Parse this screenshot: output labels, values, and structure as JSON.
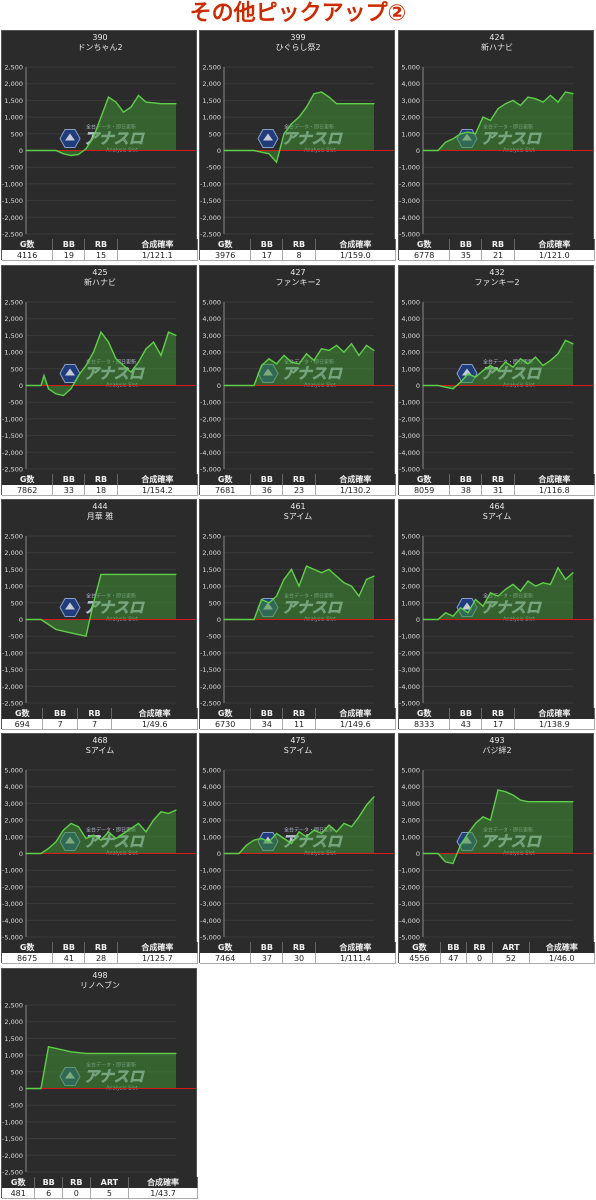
{
  "page_title": "その他ピックアップ②",
  "colors": {
    "panel_bg": "#2b2b2b",
    "line": "#5fcf4a",
    "fill": "#3f8f35",
    "zero_line": "#d41a1a",
    "grid": "#3a3a3a",
    "title": "#cc2a00"
  },
  "watermark": {
    "brand": "アナスロ",
    "sub": "Analysis Slot",
    "top": "全台データ・即日更新"
  },
  "chart_data": [
    {
      "type": "area",
      "id": "390",
      "name": "ドンちゃん2",
      "ylim": [
        -2500,
        2500
      ],
      "yticks": [
        "2,500",
        "2,000",
        "1,500",
        "1,000",
        "500",
        "0",
        "-500",
        "-1,000",
        "-1,500",
        "-2,000",
        "-2,500"
      ],
      "x": [
        0,
        10,
        20,
        25,
        30,
        35,
        40,
        45,
        50,
        55,
        60,
        65,
        70,
        75,
        80,
        90,
        100
      ],
      "y": [
        0,
        0,
        0,
        -100,
        -150,
        -120,
        50,
        400,
        1000,
        1600,
        1450,
        1150,
        1300,
        1650,
        1450,
        1400,
        1400
      ],
      "stats": {
        "headers": [
          "G数",
          "BB",
          "RB",
          "合成確率"
        ],
        "values": [
          "4116",
          "19",
          "15",
          "1/121.1"
        ]
      }
    },
    {
      "type": "area",
      "id": "399",
      "name": "ひぐらし祭2",
      "ylim": [
        -2500,
        2500
      ],
      "yticks": [
        "2,500",
        "2,000",
        "1,500",
        "1,000",
        "500",
        "0",
        "-500",
        "-1,000",
        "-1,500",
        "-2,000",
        "-2,500"
      ],
      "x": [
        0,
        10,
        20,
        25,
        30,
        35,
        40,
        45,
        50,
        55,
        60,
        65,
        70,
        75,
        80,
        90,
        100
      ],
      "y": [
        0,
        0,
        0,
        -50,
        -100,
        -350,
        500,
        800,
        1000,
        1300,
        1700,
        1750,
        1600,
        1400,
        1400,
        1400,
        1400
      ],
      "stats": {
        "headers": [
          "G数",
          "BB",
          "RB",
          "合成確率"
        ],
        "values": [
          "3976",
          "17",
          "8",
          "1/159.0"
        ]
      }
    },
    {
      "type": "area",
      "id": "424",
      "name": "新ハナビ",
      "ylim": [
        -5000,
        5000
      ],
      "yticks": [
        "5,000",
        "4,000",
        "3,000",
        "2,000",
        "1,000",
        "0",
        "-1,000",
        "-2,000",
        "-3,000",
        "-4,000",
        "-5,000"
      ],
      "x": [
        0,
        10,
        15,
        20,
        25,
        30,
        35,
        40,
        45,
        50,
        55,
        60,
        65,
        70,
        75,
        80,
        85,
        90,
        95,
        100
      ],
      "y": [
        0,
        0,
        500,
        700,
        1000,
        1100,
        1000,
        2000,
        1800,
        2500,
        2800,
        3000,
        2700,
        3200,
        3100,
        2900,
        3300,
        2900,
        3500,
        3400
      ],
      "stats": {
        "headers": [
          "G数",
          "BB",
          "RB",
          "合成確率"
        ],
        "values": [
          "6778",
          "35",
          "21",
          "1/121.0"
        ]
      }
    },
    {
      "type": "area",
      "id": "425",
      "name": "新ハナビ",
      "ylim": [
        -2500,
        2500
      ],
      "yticks": [
        "2,500",
        "2,000",
        "1,500",
        "1,000",
        "500",
        "0",
        "-500",
        "-1,000",
        "-1,500",
        "-2,000",
        "-2,500"
      ],
      "x": [
        0,
        10,
        12,
        15,
        20,
        25,
        30,
        35,
        40,
        45,
        50,
        55,
        60,
        65,
        70,
        75,
        80,
        85,
        90,
        95,
        100
      ],
      "y": [
        0,
        0,
        300,
        -100,
        -250,
        -300,
        -100,
        300,
        600,
        1000,
        1600,
        1300,
        800,
        600,
        400,
        700,
        1100,
        1300,
        900,
        1600,
        1500
      ],
      "stats": {
        "headers": [
          "G数",
          "BB",
          "RB",
          "合成確率"
        ],
        "values": [
          "7862",
          "33",
          "18",
          "1/154.2"
        ]
      }
    },
    {
      "type": "area",
      "id": "427",
      "name": "ファンキー2",
      "ylim": [
        -5000,
        5000
      ],
      "yticks": [
        "5,000",
        "4,000",
        "3,000",
        "2,000",
        "1,000",
        "0",
        "-1,000",
        "-2,000",
        "-3,000",
        "-4,000",
        "-5,000"
      ],
      "x": [
        0,
        10,
        20,
        25,
        30,
        35,
        40,
        45,
        50,
        55,
        60,
        65,
        70,
        75,
        80,
        85,
        90,
        95,
        100
      ],
      "y": [
        0,
        0,
        0,
        1200,
        1600,
        1300,
        1800,
        1400,
        1300,
        1900,
        1500,
        2200,
        2100,
        2400,
        2000,
        2500,
        1800,
        2400,
        2100
      ],
      "stats": {
        "headers": [
          "G数",
          "BB",
          "RB",
          "合成確率"
        ],
        "values": [
          "7681",
          "36",
          "23",
          "1/130.2"
        ]
      }
    },
    {
      "type": "area",
      "id": "432",
      "name": "ファンキー2",
      "ylim": [
        -5000,
        5000
      ],
      "yticks": [
        "5,000",
        "4,000",
        "3,000",
        "2,000",
        "1,000",
        "0",
        "-1,000",
        "-2,000",
        "-3,000",
        "-4,000",
        "-5,000"
      ],
      "x": [
        0,
        10,
        15,
        20,
        25,
        30,
        35,
        40,
        45,
        50,
        55,
        60,
        65,
        70,
        75,
        80,
        85,
        90,
        95,
        100
      ],
      "y": [
        0,
        0,
        -100,
        -200,
        200,
        700,
        500,
        900,
        1200,
        900,
        1400,
        1100,
        1600,
        1300,
        1700,
        1200,
        1500,
        1900,
        2700,
        2500
      ],
      "stats": {
        "headers": [
          "G数",
          "BB",
          "RB",
          "合成確率"
        ],
        "values": [
          "8059",
          "38",
          "31",
          "1/116.8"
        ]
      }
    },
    {
      "type": "area",
      "id": "444",
      "name": "月華 雅",
      "ylim": [
        -2500,
        2500
      ],
      "yticks": [
        "2,500",
        "2,000",
        "1,500",
        "1,000",
        "500",
        "0",
        "-500",
        "-1,000",
        "-1,500",
        "-2,000",
        "-2,500"
      ],
      "x": [
        0,
        10,
        20,
        30,
        40,
        45,
        50,
        55,
        60,
        70,
        80,
        90,
        100
      ],
      "y": [
        0,
        0,
        -300,
        -400,
        -500,
        500,
        1350,
        1350,
        1350,
        1350,
        1350,
        1350,
        1350
      ],
      "stats": {
        "headers": [
          "G数",
          "BB",
          "RB",
          "合成確率"
        ],
        "values": [
          "694",
          "7",
          "7",
          "1/49.6"
        ]
      }
    },
    {
      "type": "area",
      "id": "461",
      "name": "Sアイム",
      "ylim": [
        -2500,
        2500
      ],
      "yticks": [
        "2,500",
        "2,000",
        "1,500",
        "1,000",
        "500",
        "0",
        "-500",
        "-1,000",
        "-1,500",
        "-2,000",
        "-2,500"
      ],
      "x": [
        0,
        10,
        20,
        25,
        30,
        35,
        40,
        45,
        50,
        55,
        60,
        65,
        70,
        75,
        80,
        85,
        90,
        95,
        100
      ],
      "y": [
        0,
        0,
        0,
        600,
        500,
        700,
        1200,
        1500,
        1000,
        1600,
        1500,
        1400,
        1500,
        1300,
        1100,
        1000,
        700,
        1200,
        1300
      ],
      "stats": {
        "headers": [
          "G数",
          "BB",
          "RB",
          "合成確率"
        ],
        "values": [
          "6730",
          "34",
          "11",
          "1/149.6"
        ]
      }
    },
    {
      "type": "area",
      "id": "464",
      "name": "Sアイム",
      "ylim": [
        -5000,
        5000
      ],
      "yticks": [
        "5,000",
        "4,000",
        "3,000",
        "2,000",
        "1,000",
        "0",
        "-1,000",
        "-2,000",
        "-3,000",
        "-4,000",
        "-5,000"
      ],
      "x": [
        0,
        10,
        15,
        20,
        25,
        30,
        35,
        40,
        45,
        50,
        55,
        60,
        65,
        70,
        75,
        80,
        85,
        90,
        95,
        100
      ],
      "y": [
        0,
        0,
        400,
        200,
        700,
        400,
        1200,
        800,
        1600,
        1400,
        1800,
        2100,
        1700,
        2300,
        2000,
        2200,
        2100,
        3100,
        2400,
        2800
      ],
      "stats": {
        "headers": [
          "G数",
          "BB",
          "RB",
          "合成確率"
        ],
        "values": [
          "8333",
          "43",
          "17",
          "1/138.9"
        ]
      }
    },
    {
      "type": "area",
      "id": "468",
      "name": "Sアイム",
      "ylim": [
        -5000,
        5000
      ],
      "yticks": [
        "5,000",
        "4,000",
        "3,000",
        "2,000",
        "1,000",
        "0",
        "-1,000",
        "-2,000",
        "-3,000",
        "-4,000",
        "-5,000"
      ],
      "x": [
        0,
        10,
        15,
        20,
        25,
        30,
        35,
        40,
        45,
        50,
        55,
        60,
        65,
        70,
        75,
        80,
        85,
        90,
        95,
        100
      ],
      "y": [
        0,
        0,
        300,
        700,
        1400,
        1800,
        1600,
        900,
        1100,
        800,
        1300,
        900,
        1200,
        1500,
        1800,
        1300,
        2000,
        2500,
        2400,
        2600
      ],
      "stats": {
        "headers": [
          "G数",
          "BB",
          "RB",
          "合成確率"
        ],
        "values": [
          "8675",
          "41",
          "28",
          "1/125.7"
        ]
      }
    },
    {
      "type": "area",
      "id": "475",
      "name": "Sアイム",
      "ylim": [
        -5000,
        5000
      ],
      "yticks": [
        "5,000",
        "4,000",
        "3,000",
        "2,000",
        "1,000",
        "0",
        "-1,000",
        "-2,000",
        "-3,000",
        "-4,000",
        "-5,000"
      ],
      "x": [
        0,
        10,
        15,
        20,
        25,
        30,
        35,
        40,
        45,
        50,
        55,
        60,
        65,
        70,
        75,
        80,
        85,
        90,
        95,
        100
      ],
      "y": [
        0,
        0,
        500,
        800,
        900,
        700,
        1200,
        900,
        600,
        1300,
        1000,
        1400,
        1200,
        1700,
        1300,
        1800,
        1600,
        2200,
        2900,
        3400
      ],
      "stats": {
        "headers": [
          "G数",
          "BB",
          "RB",
          "合成確率"
        ],
        "values": [
          "7464",
          "37",
          "30",
          "1/111.4"
        ]
      }
    },
    {
      "type": "area",
      "id": "493",
      "name": "バジ絆2",
      "ylim": [
        -5000,
        5000
      ],
      "yticks": [
        "5,000",
        "4,000",
        "3,000",
        "2,000",
        "1,000",
        "0",
        "-1,000",
        "-2,000",
        "-3,000",
        "-4,000",
        "-5,000"
      ],
      "x": [
        0,
        10,
        15,
        20,
        25,
        30,
        35,
        40,
        45,
        50,
        55,
        60,
        65,
        70,
        75,
        80,
        90,
        100
      ],
      "y": [
        0,
        0,
        -500,
        -600,
        500,
        1200,
        1800,
        2200,
        2000,
        3800,
        3700,
        3500,
        3200,
        3100,
        3100,
        3100,
        3100,
        3100
      ],
      "stats": {
        "headers": [
          "G数",
          "BB",
          "RB",
          "ART",
          "合成確率"
        ],
        "values": [
          "4556",
          "47",
          "0",
          "52",
          "1/46.0"
        ]
      }
    },
    {
      "type": "area",
      "id": "498",
      "name": "リノヘブン",
      "ylim": [
        -2500,
        2500
      ],
      "yticks": [
        "2,500",
        "2,000",
        "1,500",
        "1,000",
        "500",
        "0",
        "-500",
        "-1,000",
        "-1,500",
        "-2,000",
        "-2,500"
      ],
      "x": [
        0,
        10,
        15,
        20,
        30,
        40,
        50,
        60,
        70,
        80,
        90,
        100
      ],
      "y": [
        0,
        0,
        1250,
        1200,
        1100,
        1050,
        1050,
        1050,
        1050,
        1050,
        1050,
        1050
      ],
      "stats": {
        "headers": [
          "G数",
          "BB",
          "RB",
          "ART",
          "合成確率"
        ],
        "values": [
          "481",
          "6",
          "0",
          "5",
          "1/43.7"
        ]
      }
    }
  ]
}
